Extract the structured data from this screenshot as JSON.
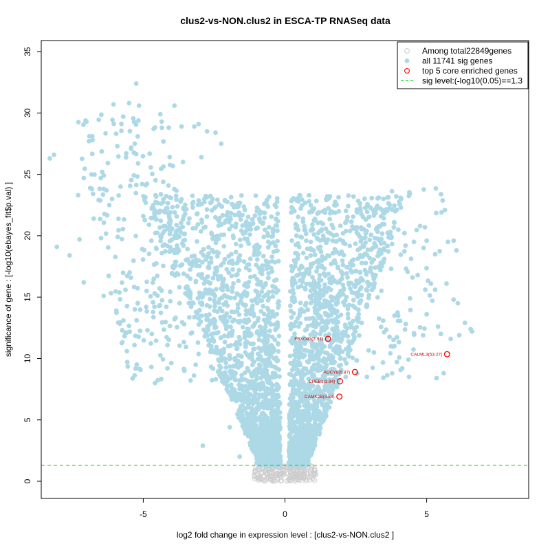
{
  "chart_data": {
    "type": "scatter",
    "title": "clus2-vs-NON.clus2 in ESCA-TP RNASeq data",
    "xlabel": "log2 fold change in expression level : [clus2-vs-NON.clus2 ]",
    "ylabel": "significance of gene : [-log10(ebayes_fit$p.val) ]",
    "xlim": [
      -8.6,
      8.6
    ],
    "ylim": [
      -1.4,
      35.9
    ],
    "x_ticks": [
      -5,
      0,
      5
    ],
    "y_ticks": [
      0,
      5,
      10,
      15,
      20,
      25,
      30,
      35
    ],
    "grid": false,
    "legend_position": "top-right",
    "legend": [
      {
        "label": "Among total22849genes",
        "marker": "open-circle",
        "color": "#cccccc"
      },
      {
        "label": "all 11741 sig genes",
        "marker": "filled-circle",
        "color": "#add8e6"
      },
      {
        "label": "top 5 core enriched genes",
        "marker": "open-circle",
        "color": "#ff0000"
      },
      {
        "label": "sig level:(-log10(0.05)==1.3",
        "marker": "dashed-line",
        "color": "#00cc00"
      }
    ],
    "threshold_line": {
      "y": 1.3,
      "color": "#00cc00"
    },
    "series": [
      {
        "name": "top 5 core enriched genes",
        "color": "#cc0000",
        "points": [
          {
            "label": "FBXO43(2.91)",
            "x": 1.52,
            "y": 11.6
          },
          {
            "label": "CALML3(53.27)",
            "x": 5.72,
            "y": 10.35
          },
          {
            "label": "ADCY8(5.87)",
            "x": 2.47,
            "y": 8.9
          },
          {
            "label": "CPEB1(3.94)",
            "x": 1.94,
            "y": 8.15
          },
          {
            "label": "CAMK2B(3.88)",
            "x": 1.92,
            "y": 6.9
          }
        ]
      }
    ],
    "notable_scatter_points": [
      [
        -8.3,
        26.3
      ],
      [
        -8.15,
        26.6
      ],
      [
        -8.05,
        19.1
      ],
      [
        -7.6,
        18.4
      ],
      [
        -7.3,
        23.3
      ],
      [
        -7.25,
        19.7
      ],
      [
        -7.1,
        24.7
      ],
      [
        -7.1,
        16.2
      ],
      [
        -6.9,
        28.1
      ],
      [
        -6.8,
        28.1
      ],
      [
        -6.75,
        21.4
      ],
      [
        -6.5,
        24.7
      ],
      [
        -6.4,
        15.1
      ],
      [
        -6.3,
        23.7
      ],
      [
        -6.2,
        22.5
      ],
      [
        -6.1,
        23.0
      ],
      [
        -6.05,
        30.7
      ],
      [
        -5.95,
        13.9
      ],
      [
        -5.9,
        19.9
      ],
      [
        -5.8,
        24.0
      ],
      [
        -5.7,
        13.1
      ],
      [
        -5.6,
        26.7
      ],
      [
        -5.5,
        30.8
      ],
      [
        -5.3,
        27.5
      ],
      [
        -5.25,
        32.4
      ],
      [
        -5.15,
        30.6
      ],
      [
        -5.0,
        21.6
      ],
      [
        -4.9,
        14.2
      ],
      [
        -4.85,
        12.3
      ],
      [
        -4.7,
        12.0
      ],
      [
        -4.6,
        15.3
      ],
      [
        -4.4,
        29.9
      ],
      [
        -4.35,
        29.3
      ],
      [
        -4.1,
        28.8
      ],
      [
        -3.9,
        30.6
      ],
      [
        -3.65,
        28.9
      ],
      [
        -3.6,
        26.0
      ],
      [
        -3.55,
        9.0
      ],
      [
        -3.2,
        28.9
      ],
      [
        -3.05,
        29.1
      ],
      [
        -2.95,
        26.4
      ],
      [
        -2.75,
        28.5
      ],
      [
        -2.45,
        28.4
      ],
      [
        -2.25,
        27.5
      ],
      [
        -1.95,
        4.4
      ],
      [
        -2.9,
        2.9
      ],
      [
        -1.6,
        2.0
      ],
      [
        -1.0,
        1.5
      ],
      [
        0.75,
        19.6
      ],
      [
        1.35,
        20.0
      ],
      [
        2.05,
        20.2
      ],
      [
        2.3,
        20.4
      ],
      [
        2.55,
        21.9
      ],
      [
        2.95,
        22.4
      ],
      [
        3.85,
        21.1
      ],
      [
        4.0,
        20.5
      ],
      [
        4.4,
        23.4
      ],
      [
        4.1,
        23.0
      ],
      [
        4.55,
        19.5
      ],
      [
        4.5,
        16.6
      ],
      [
        4.95,
        15.6
      ],
      [
        5.15,
        16.1
      ],
      [
        5.3,
        15.6
      ],
      [
        5.2,
        14.7
      ],
      [
        5.0,
        13.6
      ],
      [
        5.4,
        12.6
      ],
      [
        5.5,
        12.0
      ],
      [
        5.35,
        8.4
      ],
      [
        5.6,
        8.8
      ],
      [
        5.75,
        19.5
      ],
      [
        5.95,
        19.6
      ],
      [
        6.05,
        18.8
      ],
      [
        5.95,
        14.8
      ],
      [
        6.1,
        14.5
      ],
      [
        6.35,
        12.9
      ],
      [
        6.55,
        12.4
      ],
      [
        5.85,
        11.6
      ],
      [
        6.15,
        11.9
      ],
      [
        5.7,
        16.1
      ],
      [
        5.3,
        18.5
      ],
      [
        6.6,
        12.2
      ]
    ]
  }
}
